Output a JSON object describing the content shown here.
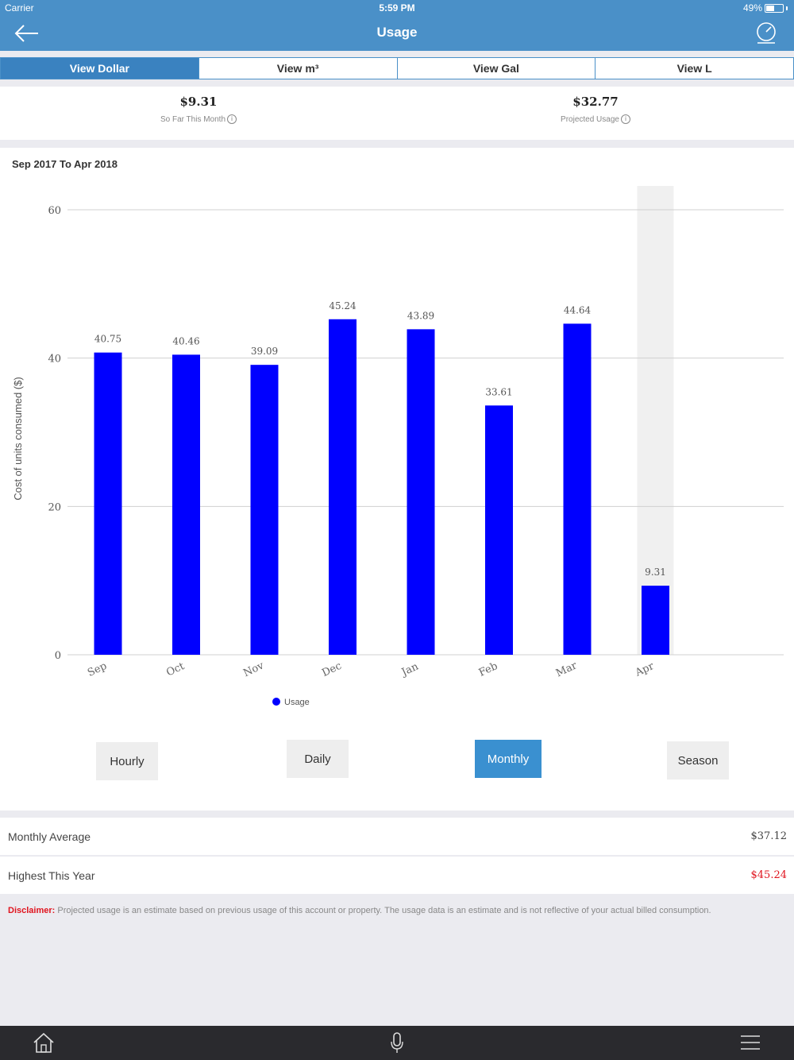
{
  "status_bar": {
    "carrier": "Carrier",
    "time": "5:59 PM",
    "battery": "49%"
  },
  "nav": {
    "title": "Usage",
    "back_icon": "back-arrow-icon",
    "right_icon": "meter-gauge-icon"
  },
  "tabs": [
    {
      "label": "View Dollar",
      "active": true
    },
    {
      "label": "View m³",
      "active": false
    },
    {
      "label": "View Gal",
      "active": false
    },
    {
      "label": "View L",
      "active": false
    }
  ],
  "summary": {
    "so_far": {
      "amount": "$9.31",
      "label": "So Far This Month"
    },
    "projected": {
      "amount": "$32.77",
      "label": "Projected Usage"
    }
  },
  "chart_range": "Sep 2017 To Apr 2018",
  "chart_data": {
    "type": "bar",
    "title": "",
    "ylabel": "Cost of units consumed ($)",
    "xlabel": "",
    "ylim": [
      0,
      60
    ],
    "yticks": [
      0,
      20,
      40,
      60
    ],
    "grid": true,
    "categories": [
      "Sep",
      "Oct",
      "Nov",
      "Dec",
      "Jan",
      "Feb",
      "Mar",
      "Apr"
    ],
    "series": [
      {
        "name": "Usage",
        "color": "#0000ff",
        "values": [
          40.75,
          40.46,
          39.09,
          45.24,
          43.89,
          33.61,
          44.64,
          9.31
        ]
      }
    ],
    "value_labels": [
      "40.75",
      "40.46",
      "39.09",
      "45.24",
      "43.89",
      "33.61",
      "44.64",
      "9.31"
    ],
    "highlighted_category": "Apr",
    "legend": "bottom"
  },
  "period_buttons": [
    {
      "label": "Hourly",
      "active": false
    },
    {
      "label": "Daily",
      "active": false
    },
    {
      "label": "Monthly",
      "active": true
    },
    {
      "label": "Season",
      "active": false
    }
  ],
  "stats": {
    "monthly_average": {
      "label": "Monthly Average",
      "value": "$37.12"
    },
    "highest_this_year": {
      "label": "Highest This Year",
      "value": "$45.24"
    }
  },
  "disclaimer": {
    "heading": "Disclaimer:",
    "text": " Projected usage is an estimate based on previous usage of this account or property. The usage data is an estimate and is not reflective of your actual billed consumption."
  },
  "tab_bar": {
    "left_icon": "home-icon",
    "center_icon": "microphone-icon",
    "right_icon": "menu-icon"
  },
  "colors": {
    "primary": "#4a90c8",
    "bar": "#0000ff",
    "highlight": "#e0141e"
  }
}
